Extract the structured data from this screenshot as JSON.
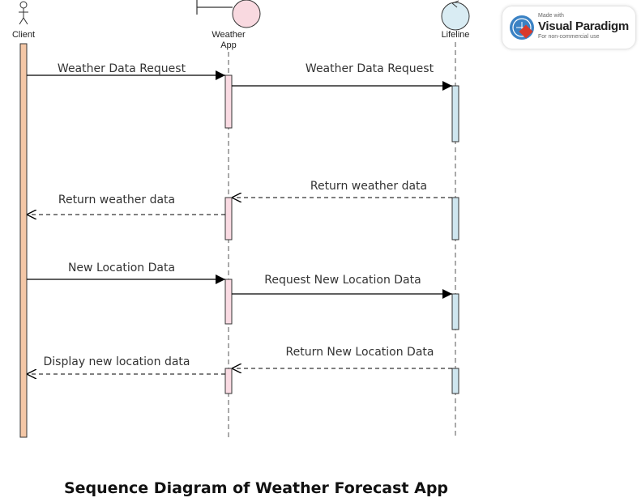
{
  "participants": {
    "client": "Client",
    "weather_app_line1": "Weather",
    "weather_app_line2": "App",
    "lifeline": "Lifeline"
  },
  "messages": {
    "m1": "Weather Data Request",
    "m2": "Weather Data Request",
    "m3": "Return weather data",
    "m4": "Return weather data",
    "m5": "New Location Data",
    "m6": "Request New Location Data",
    "m7": "Return New Location Data",
    "m8": "Display new location data"
  },
  "caption": "Sequence Diagram of Weather Forecast App",
  "badge": {
    "made_with": "Made with",
    "brand": "Visual Paradigm",
    "note": "For non-commercial use"
  },
  "colors": {
    "client_activation": "#f4c7a6",
    "app_activation": "#fadbe3",
    "lifeline_activation": "#cfe6ef",
    "boundary_head": "#f9d9e0",
    "entity_head": "#d9ecf3"
  }
}
